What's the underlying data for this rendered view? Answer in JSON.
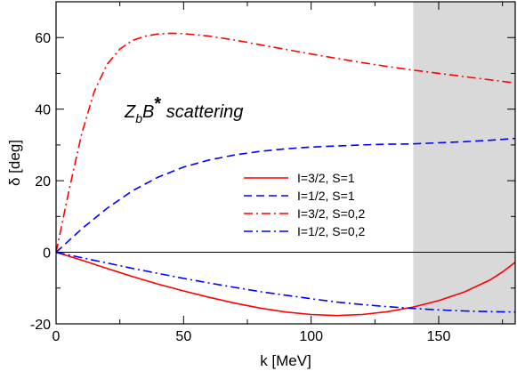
{
  "chart_data": {
    "type": "line",
    "xlabel": "k [MeV]",
    "ylabel": "δ [deg]",
    "xlim": [
      0,
      180
    ],
    "ylim": [
      -20,
      70
    ],
    "x_ticks": [
      0,
      50,
      100,
      150
    ],
    "y_ticks": [
      -20,
      0,
      20,
      40,
      60
    ],
    "shaded_region": [
      140,
      180
    ],
    "zero_line": true,
    "grid": false,
    "legend_position": "center-right",
    "annotation": {
      "base": "Z",
      "sub": "b",
      "mid": "B",
      "sup": "*",
      "tail": " scattering"
    },
    "series": [
      {
        "name": "I=3/2, S=1",
        "color": "#ff0000",
        "dash": "solid",
        "points": [
          [
            0,
            0
          ],
          [
            10,
            -2.2
          ],
          [
            20,
            -4.5
          ],
          [
            30,
            -6.8
          ],
          [
            40,
            -8.9
          ],
          [
            50,
            -10.8
          ],
          [
            60,
            -12.6
          ],
          [
            70,
            -14.2
          ],
          [
            80,
            -15.6
          ],
          [
            90,
            -16.7
          ],
          [
            100,
            -17.4
          ],
          [
            110,
            -17.7
          ],
          [
            120,
            -17.4
          ],
          [
            130,
            -16.6
          ],
          [
            140,
            -15.3
          ],
          [
            150,
            -13.5
          ],
          [
            160,
            -11.1
          ],
          [
            170,
            -7.8
          ],
          [
            175,
            -5.5
          ],
          [
            180,
            -2.8
          ]
        ]
      },
      {
        "name": "I=1/2, S=1",
        "color": "#0000ff",
        "dash": "dashed",
        "points": [
          [
            0,
            0
          ],
          [
            10,
            6.5
          ],
          [
            20,
            12.3
          ],
          [
            30,
            17.2
          ],
          [
            40,
            21.0
          ],
          [
            50,
            23.8
          ],
          [
            60,
            25.8
          ],
          [
            70,
            27.2
          ],
          [
            80,
            28.2
          ],
          [
            90,
            28.9
          ],
          [
            100,
            29.4
          ],
          [
            110,
            29.7
          ],
          [
            120,
            30.0
          ],
          [
            130,
            30.2
          ],
          [
            140,
            30.3
          ],
          [
            150,
            30.6
          ],
          [
            160,
            30.9
          ],
          [
            170,
            31.3
          ],
          [
            180,
            31.8
          ]
        ]
      },
      {
        "name": "I=3/2, S=0,2",
        "color": "#ff0000",
        "dash": "dashdot",
        "points": [
          [
            0,
            0
          ],
          [
            5,
            17
          ],
          [
            10,
            33
          ],
          [
            15,
            45
          ],
          [
            20,
            52.5
          ],
          [
            25,
            56.8
          ],
          [
            30,
            59.2
          ],
          [
            35,
            60.4
          ],
          [
            40,
            61.0
          ],
          [
            45,
            61.2
          ],
          [
            50,
            61.1
          ],
          [
            60,
            60.4
          ],
          [
            70,
            59.3
          ],
          [
            80,
            58.0
          ],
          [
            90,
            56.7
          ],
          [
            100,
            55.4
          ],
          [
            110,
            54.2
          ],
          [
            120,
            53.0
          ],
          [
            130,
            51.9
          ],
          [
            140,
            50.9
          ],
          [
            150,
            50.0
          ],
          [
            160,
            49.1
          ],
          [
            170,
            48.2
          ],
          [
            180,
            47.3
          ]
        ]
      },
      {
        "name": "I=1/2, S=0,2",
        "color": "#0000ff",
        "dash": "dashdot",
        "points": [
          [
            0,
            0
          ],
          [
            10,
            -1.5
          ],
          [
            20,
            -3.0
          ],
          [
            30,
            -4.5
          ],
          [
            40,
            -5.9
          ],
          [
            50,
            -7.3
          ],
          [
            60,
            -8.6
          ],
          [
            70,
            -9.8
          ],
          [
            80,
            -11.0
          ],
          [
            90,
            -12.0
          ],
          [
            100,
            -13.0
          ],
          [
            110,
            -13.9
          ],
          [
            120,
            -14.6
          ],
          [
            130,
            -15.2
          ],
          [
            140,
            -15.7
          ],
          [
            150,
            -16.1
          ],
          [
            160,
            -16.4
          ],
          [
            170,
            -16.6
          ],
          [
            180,
            -16.7
          ]
        ]
      }
    ]
  }
}
